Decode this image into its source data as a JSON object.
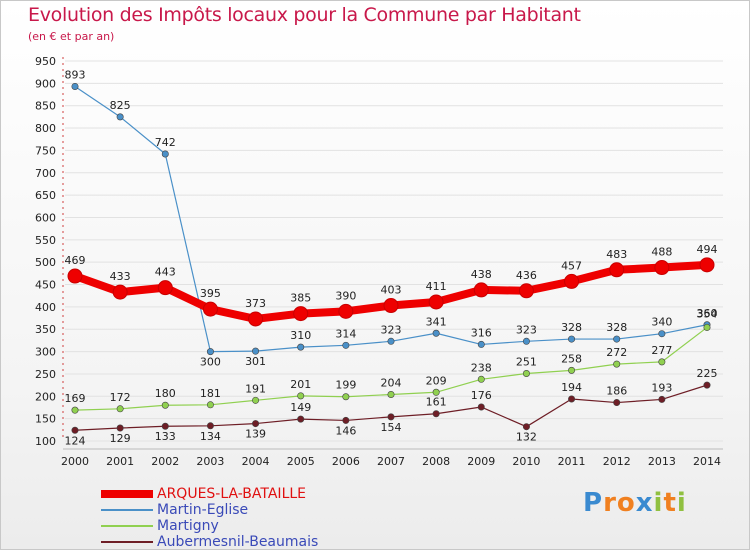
{
  "chart_data": {
    "type": "line",
    "title": "Evolution des Impôts locaux pour la Commune par Habitant",
    "subtitle": "(en € et par an)",
    "xlabel": "",
    "ylabel": "",
    "ylim": [
      100,
      950
    ],
    "ytick_step": 50,
    "grid": "horizontal",
    "x": [
      2000,
      2001,
      2002,
      2003,
      2004,
      2005,
      2006,
      2007,
      2008,
      2009,
      2010,
      2011,
      2012,
      2013,
      2014
    ],
    "series": [
      {
        "name": "Martin-Eglise",
        "color": "#4a90c8",
        "values": [
          893,
          825,
          742,
          300,
          301,
          310,
          314,
          323,
          341,
          316,
          323,
          328,
          328,
          340,
          360
        ]
      },
      {
        "name": "Martigny",
        "color": "#90d050",
        "values": [
          169,
          172,
          180,
          181,
          191,
          201,
          199,
          204,
          209,
          238,
          251,
          258,
          272,
          277,
          354
        ]
      },
      {
        "name": "Aubermesnil-Beaumais",
        "color": "#6e1e26",
        "values": [
          124,
          129,
          133,
          134,
          139,
          149,
          146,
          154,
          161,
          176,
          132,
          194,
          186,
          193,
          225
        ]
      },
      {
        "name": "ARQUES-LA-BATAILLE",
        "color": "#ee0000",
        "values": [
          469,
          433,
          443,
          395,
          373,
          385,
          390,
          403,
          411,
          438,
          436,
          457,
          483,
          488,
          494
        ]
      }
    ],
    "legend": [
      {
        "label": "ARQUES-LA-BATAILLE",
        "color": "#ee0000"
      },
      {
        "label": "Martin-Eglise",
        "color": "#4a90c8"
      },
      {
        "label": "Martigny",
        "color": "#90d050"
      },
      {
        "label": "Aubermesnil-Beaumais",
        "color": "#6e1e26"
      }
    ]
  },
  "logo": {
    "letters": [
      "P",
      "r",
      "o",
      "x",
      "i",
      "t",
      "i"
    ],
    "colors": [
      "#3a8ad0",
      "#f08020",
      "#f08020",
      "#3a8ad0",
      "#90c040",
      "#f08020",
      "#90c040"
    ]
  }
}
